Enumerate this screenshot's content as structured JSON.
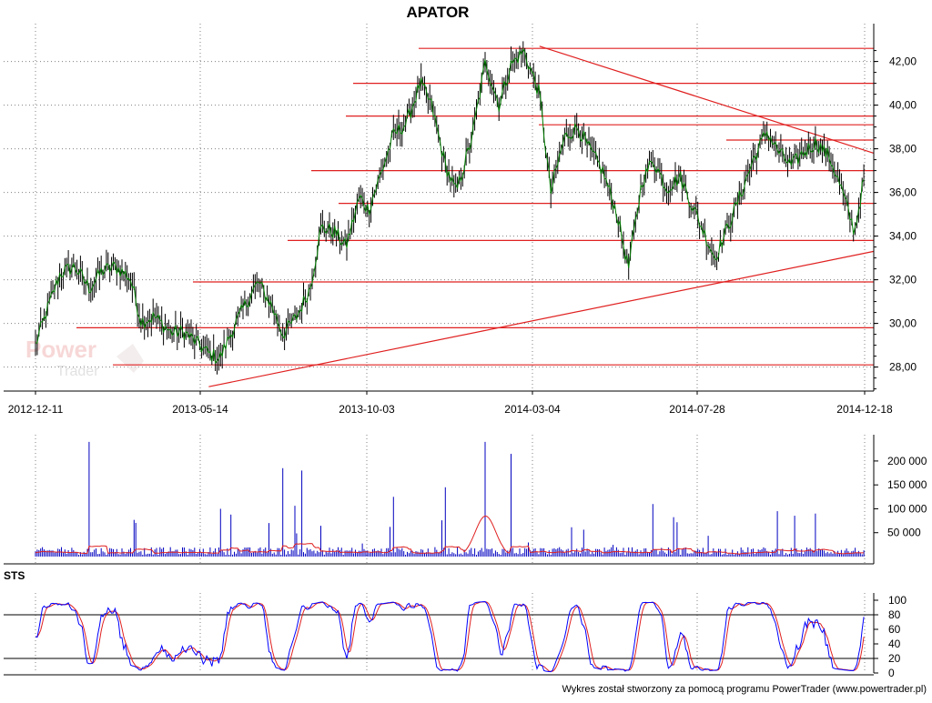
{
  "chart_data": [
    {
      "type": "line",
      "panel": "price",
      "title": "APATOR",
      "x_ticks": [
        "2012-12-11",
        "2013-05-14",
        "2013-10-03",
        "2014-03-04",
        "2014-07-28",
        "2014-12-18"
      ],
      "y_ticks": [
        "28,00",
        "30,00",
        "32,00",
        "34,00",
        "36,00",
        "38,00",
        "40,00",
        "42,00"
      ],
      "ylim": [
        26.9,
        42.9
      ],
      "grid": true,
      "price_color": "#008000",
      "bar_color": "#000000",
      "series": [
        {
          "x": [
            "2012-12-11",
            "2012-12-20",
            "2013-01-02",
            "2013-01-15",
            "2013-01-28",
            "2013-02-08",
            "2013-02-20",
            "2013-03-05",
            "2013-03-15",
            "2013-03-27",
            "2013-04-10",
            "2013-04-22",
            "2013-05-06",
            "2013-05-14",
            "2013-05-24",
            "2013-06-05",
            "2013-06-17",
            "2013-06-27",
            "2013-07-09",
            "2013-07-19",
            "2013-07-31",
            "2013-08-12",
            "2013-08-22",
            "2013-09-03",
            "2013-09-13",
            "2013-09-25",
            "2013-10-03",
            "2013-10-15",
            "2013-10-25",
            "2013-11-06",
            "2013-11-18",
            "2013-11-28",
            "2013-12-10",
            "2013-12-20",
            "2014-01-03",
            "2014-01-15",
            "2014-01-27",
            "2014-02-06",
            "2014-02-18",
            "2014-03-04",
            "2014-03-14",
            "2014-03-26",
            "2014-04-07",
            "2014-04-17",
            "2014-04-29",
            "2014-05-12",
            "2014-05-22",
            "2014-06-03",
            "2014-06-13",
            "2014-06-25",
            "2014-07-07",
            "2014-07-17",
            "2014-07-28",
            "2014-08-07",
            "2014-08-19",
            "2014-08-29",
            "2014-09-10",
            "2014-09-22",
            "2014-10-02",
            "2014-10-14",
            "2014-10-24",
            "2014-11-05",
            "2014-11-17",
            "2014-11-27",
            "2014-12-09",
            "2014-12-18"
          ],
          "values": [
            29.0,
            30.4,
            32.3,
            32.6,
            31.6,
            32.4,
            32.6,
            32.1,
            30.1,
            30.3,
            29.6,
            29.6,
            29.0,
            28.6,
            28.4,
            29.8,
            31.0,
            31.9,
            30.8,
            29.5,
            30.3,
            31.6,
            34.4,
            34.2,
            33.5,
            35.8,
            35.2,
            37.0,
            38.6,
            39.2,
            41.0,
            40.0,
            37.3,
            36.0,
            38.5,
            42.0,
            40.0,
            41.8,
            42.5,
            40.5,
            36.0,
            38.5,
            39.0,
            38.0,
            37.0,
            35.0,
            32.5,
            36.5,
            37.5,
            36.2,
            36.7,
            35.5,
            34.2,
            33.0,
            34.5,
            35.8,
            37.5,
            38.8,
            37.9,
            37.2,
            37.8,
            38.3,
            37.6,
            36.2,
            34.2,
            36.8
          ]
        }
      ],
      "support_resistance_levels": [
        42.6,
        41.0,
        39.5,
        39.1,
        38.4,
        37.0,
        35.5,
        33.8,
        31.9,
        29.8,
        28.1
      ],
      "trendlines": [
        {
          "from": [
            "2013-05-14",
            27.1
          ],
          "to": [
            "2014-12-18",
            33.3
          ]
        },
        {
          "from": [
            "2014-03-04",
            42.7
          ],
          "to": [
            "2014-12-18",
            37.8
          ]
        }
      ]
    },
    {
      "type": "bar",
      "panel": "volume",
      "y_ticks": [
        "50 000",
        "100 000",
        "150 000",
        "200 000"
      ],
      "ylim": [
        0,
        255000
      ],
      "bar_color": "#0000c0",
      "ma_color": "#e02020",
      "spikes": [
        {
          "x": "2013-01-28",
          "value": 240000
        },
        {
          "x": "2013-05-24",
          "value": 100000
        },
        {
          "x": "2013-07-19",
          "value": 185000
        },
        {
          "x": "2013-08-05",
          "value": 180000
        },
        {
          "x": "2013-10-25",
          "value": 125000
        },
        {
          "x": "2013-12-10",
          "value": 145000
        },
        {
          "x": "2014-01-15",
          "value": 240000
        },
        {
          "x": "2014-02-06",
          "value": 215000
        },
        {
          "x": "2014-06-13",
          "value": 110000
        },
        {
          "x": "2014-10-02",
          "value": 95000
        },
        {
          "x": "2014-11-05",
          "value": 90000
        }
      ],
      "baseline_volume": 18000,
      "moving_average_peak": {
        "x": "2014-01-15",
        "value": 85000
      }
    },
    {
      "type": "line",
      "panel": "oscillator",
      "label": "STS",
      "y_ticks": [
        "0",
        "20",
        "40",
        "60",
        "80",
        "100"
      ],
      "ylim": [
        0,
        100
      ],
      "levels": [
        20,
        80
      ],
      "fast_color": "#0000ff",
      "slow_color": "#e02020"
    }
  ],
  "footer": "Wykres został stworzony za pomocą programu PowerTrader (www.powertrader.pl)",
  "watermark": "PowerTrader",
  "colors": {
    "background": "#ffffff",
    "grid": "#808080",
    "levels": "#e02020"
  }
}
